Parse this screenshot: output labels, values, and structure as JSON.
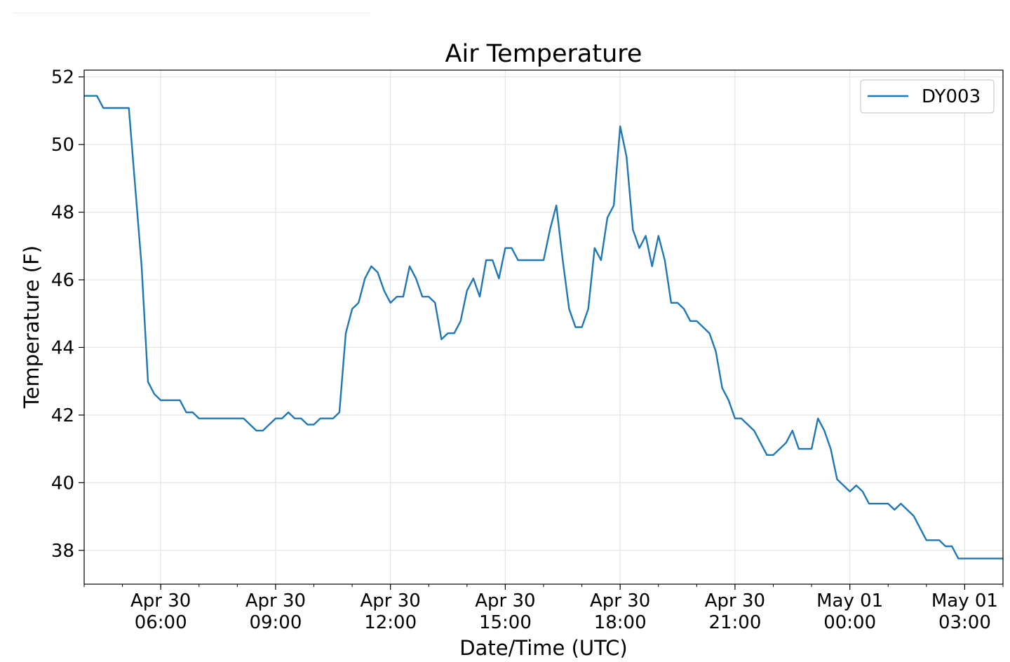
{
  "chart_data": {
    "type": "line",
    "title": "Air Temperature",
    "xlabel": "Date/Time (UTC)",
    "ylabel": "Temperature (F)",
    "ylim": [
      37,
      52.2
    ],
    "yticks": [
      38,
      40,
      42,
      44,
      46,
      48,
      50,
      52
    ],
    "xlim": [
      "2019-04-30 04:00",
      "2019-05-01 04:00"
    ],
    "xtick_labels": [
      {
        "t": "2019-04-30 06:00",
        "line1": "Apr 30",
        "line2": "06:00"
      },
      {
        "t": "2019-04-30 09:00",
        "line1": "Apr 30",
        "line2": "09:00"
      },
      {
        "t": "2019-04-30 12:00",
        "line1": "Apr 30",
        "line2": "12:00"
      },
      {
        "t": "2019-04-30 15:00",
        "line1": "Apr 30",
        "line2": "15:00"
      },
      {
        "t": "2019-04-30 18:00",
        "line1": "Apr 30",
        "line2": "18:00"
      },
      {
        "t": "2019-04-30 21:00",
        "line1": "Apr 30",
        "line2": "21:00"
      },
      {
        "t": "2019-05-01 00:00",
        "line1": "May 01",
        "line2": "00:00"
      },
      {
        "t": "2019-05-01 03:00",
        "line1": "May 01",
        "line2": "03:00"
      }
    ],
    "grid": true,
    "legend_position": "top-right",
    "colors": {
      "series": "#1f77b4",
      "grid": "#e6e6e6",
      "axis": "#000000"
    },
    "series": [
      {
        "name": "DY003",
        "points": [
          [
            "2019-04-30 04:00",
            51.44
          ],
          [
            "2019-04-30 04:20",
            51.44
          ],
          [
            "2019-04-30 04:30",
            51.08
          ],
          [
            "2019-04-30 05:10",
            51.08
          ],
          [
            "2019-04-30 05:30",
            46.4
          ],
          [
            "2019-04-30 05:40",
            42.98
          ],
          [
            "2019-04-30 05:50",
            42.62
          ],
          [
            "2019-04-30 06:00",
            42.44
          ],
          [
            "2019-04-30 06:20",
            42.44
          ],
          [
            "2019-04-30 06:30",
            42.44
          ],
          [
            "2019-04-30 06:40",
            42.08
          ],
          [
            "2019-04-30 06:50",
            42.08
          ],
          [
            "2019-04-30 07:00",
            41.9
          ],
          [
            "2019-04-30 08:10",
            41.9
          ],
          [
            "2019-04-30 08:30",
            41.54
          ],
          [
            "2019-04-30 08:40",
            41.54
          ],
          [
            "2019-04-30 09:00",
            41.9
          ],
          [
            "2019-04-30 09:10",
            41.9
          ],
          [
            "2019-04-30 09:20",
            42.08
          ],
          [
            "2019-04-30 09:30",
            41.9
          ],
          [
            "2019-04-30 09:40",
            41.9
          ],
          [
            "2019-04-30 09:50",
            41.72
          ],
          [
            "2019-04-30 10:00",
            41.72
          ],
          [
            "2019-04-30 10:10",
            41.9
          ],
          [
            "2019-04-30 10:30",
            41.9
          ],
          [
            "2019-04-30 10:40",
            42.08
          ],
          [
            "2019-04-30 10:50",
            44.42
          ],
          [
            "2019-04-30 11:00",
            45.14
          ],
          [
            "2019-04-30 11:10",
            45.32
          ],
          [
            "2019-04-30 11:20",
            46.04
          ],
          [
            "2019-04-30 11:30",
            46.4
          ],
          [
            "2019-04-30 11:40",
            46.22
          ],
          [
            "2019-04-30 11:50",
            45.68
          ],
          [
            "2019-04-30 12:00",
            45.32
          ],
          [
            "2019-04-30 12:10",
            45.5
          ],
          [
            "2019-04-30 12:20",
            45.5
          ],
          [
            "2019-04-30 12:30",
            46.4
          ],
          [
            "2019-04-30 12:40",
            46.04
          ],
          [
            "2019-04-30 12:50",
            45.5
          ],
          [
            "2019-04-30 13:00",
            45.5
          ],
          [
            "2019-04-30 13:10",
            45.32
          ],
          [
            "2019-04-30 13:20",
            44.24
          ],
          [
            "2019-04-30 13:30",
            44.42
          ],
          [
            "2019-04-30 13:40",
            44.42
          ],
          [
            "2019-04-30 13:50",
            44.78
          ],
          [
            "2019-04-30 14:00",
            45.68
          ],
          [
            "2019-04-30 14:10",
            46.04
          ],
          [
            "2019-04-30 14:20",
            45.5
          ],
          [
            "2019-04-30 14:30",
            46.58
          ],
          [
            "2019-04-30 14:40",
            46.58
          ],
          [
            "2019-04-30 14:50",
            46.04
          ],
          [
            "2019-04-30 15:00",
            46.94
          ],
          [
            "2019-04-30 15:10",
            46.94
          ],
          [
            "2019-04-30 15:20",
            46.58
          ],
          [
            "2019-04-30 16:00",
            46.58
          ],
          [
            "2019-04-30 16:10",
            47.48
          ],
          [
            "2019-04-30 16:20",
            48.2
          ],
          [
            "2019-04-30 16:30",
            46.58
          ],
          [
            "2019-04-30 16:40",
            45.14
          ],
          [
            "2019-04-30 16:50",
            44.6
          ],
          [
            "2019-04-30 17:00",
            44.6
          ],
          [
            "2019-04-30 17:10",
            45.14
          ],
          [
            "2019-04-30 17:20",
            46.94
          ],
          [
            "2019-04-30 17:30",
            46.58
          ],
          [
            "2019-04-30 17:40",
            47.84
          ],
          [
            "2019-04-30 17:50",
            48.2
          ],
          [
            "2019-04-30 18:00",
            50.54
          ],
          [
            "2019-04-30 18:10",
            49.64
          ],
          [
            "2019-04-30 18:20",
            47.48
          ],
          [
            "2019-04-30 18:30",
            46.94
          ],
          [
            "2019-04-30 18:40",
            47.3
          ],
          [
            "2019-04-30 18:50",
            46.4
          ],
          [
            "2019-04-30 19:00",
            47.3
          ],
          [
            "2019-04-30 19:10",
            46.58
          ],
          [
            "2019-04-30 19:20",
            45.32
          ],
          [
            "2019-04-30 19:30",
            45.32
          ],
          [
            "2019-04-30 19:40",
            45.14
          ],
          [
            "2019-04-30 19:50",
            44.78
          ],
          [
            "2019-04-30 20:00",
            44.78
          ],
          [
            "2019-04-30 20:20",
            44.42
          ],
          [
            "2019-04-30 20:30",
            43.88
          ],
          [
            "2019-04-30 20:40",
            42.8
          ],
          [
            "2019-04-30 20:50",
            42.44
          ],
          [
            "2019-04-30 21:00",
            41.9
          ],
          [
            "2019-04-30 21:10",
            41.9
          ],
          [
            "2019-04-30 21:30",
            41.54
          ],
          [
            "2019-04-30 21:50",
            40.82
          ],
          [
            "2019-04-30 22:00",
            40.82
          ],
          [
            "2019-04-30 22:20",
            41.18
          ],
          [
            "2019-04-30 22:30",
            41.54
          ],
          [
            "2019-04-30 22:40",
            41.0
          ],
          [
            "2019-04-30 23:00",
            41.0
          ],
          [
            "2019-04-30 23:10",
            41.9
          ],
          [
            "2019-04-30 23:20",
            41.54
          ],
          [
            "2019-04-30 23:30",
            41.0
          ],
          [
            "2019-04-30 23:40",
            40.1
          ],
          [
            "2019-05-01 00:00",
            39.74
          ],
          [
            "2019-05-01 00:10",
            39.92
          ],
          [
            "2019-05-01 00:20",
            39.74
          ],
          [
            "2019-05-01 00:30",
            39.38
          ],
          [
            "2019-05-01 01:00",
            39.38
          ],
          [
            "2019-05-01 01:10",
            39.2
          ],
          [
            "2019-05-01 01:20",
            39.38
          ],
          [
            "2019-05-01 01:40",
            39.02
          ],
          [
            "2019-05-01 02:00",
            38.3
          ],
          [
            "2019-05-01 02:20",
            38.3
          ],
          [
            "2019-05-01 02:30",
            38.12
          ],
          [
            "2019-05-01 02:40",
            38.12
          ],
          [
            "2019-05-01 02:50",
            37.76
          ],
          [
            "2019-05-01 04:00",
            37.76
          ]
        ]
      }
    ]
  }
}
